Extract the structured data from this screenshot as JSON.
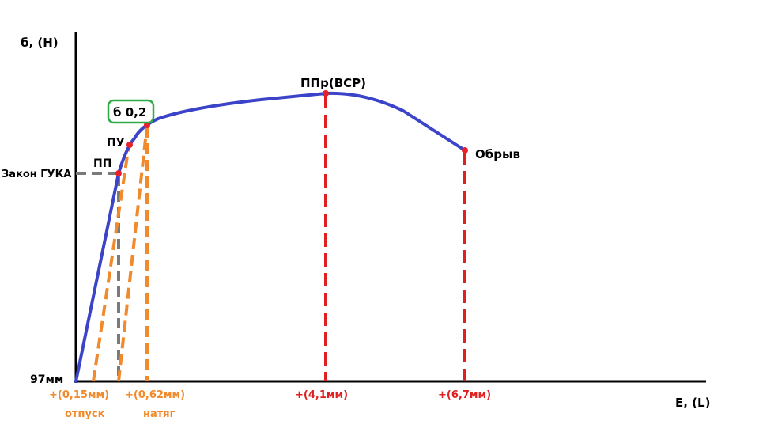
{
  "axes": {
    "y_label": "б, (Н)",
    "x_label": "Е, (L)"
  },
  "labels": {
    "origin": "97мм",
    "hooke": "Закон ГУКА",
    "pp": "ПП",
    "pu": "ПУ",
    "sigma02": "б 0,2",
    "ppr": "ППр(ВСР)",
    "break": "Обрыв"
  },
  "x_marks": {
    "m1": "+(0,15мм)",
    "m1_note": "отпуск",
    "m2": "+(0,62мм)",
    "m2_note": "натяг",
    "m3": "+(4,1мм)",
    "m4": "+(6,7мм)"
  },
  "colors": {
    "axis": "#000000",
    "curve": "#3b44c8",
    "point": "#e8202a",
    "orange": "#f08a2c",
    "gray": "#7a7a7a",
    "red_dash": "#e02020",
    "box_border": "#2eaa4a"
  }
}
